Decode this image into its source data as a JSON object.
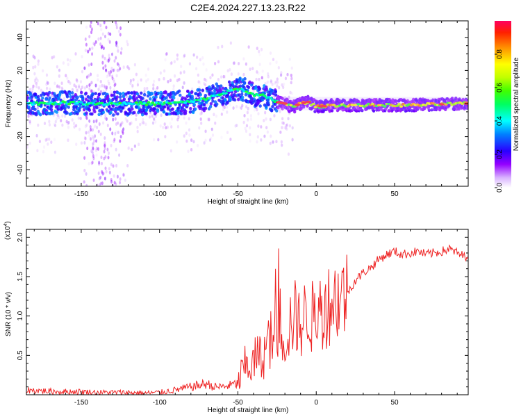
{
  "title": "C2E4.2024.227.13.23.R22",
  "chart_data": [
    {
      "type": "heatmap",
      "title": "C2E4.2024.227.13.23.R22",
      "xlabel": "Height of straight line (km)",
      "ylabel": "Frequency (Hz)",
      "xlim": [
        -185,
        97
      ],
      "ylim": [
        -50,
        50
      ],
      "xticks": [
        -150,
        -100,
        -50,
        0,
        50
      ],
      "xtick_labels": [
        "-150",
        "-100",
        "-50",
        "0",
        "50"
      ],
      "yticks": [
        40,
        20,
        0,
        -20,
        -40
      ],
      "ytick_labels": [
        "40",
        "20",
        "0",
        "-20",
        "-40"
      ],
      "ridge_frequency_hz": {
        "x": [
          -185,
          -160,
          -140,
          -120,
          -100,
          -80,
          -70,
          -60,
          -50,
          -45,
          -40,
          -35,
          -30,
          -25,
          -20,
          -15,
          -10,
          -5,
          0,
          10,
          30,
          60,
          97
        ],
        "y": [
          0,
          0.5,
          0,
          0,
          0,
          1,
          3,
          6,
          9,
          8,
          5,
          5,
          3,
          1,
          0,
          -2,
          0,
          1,
          -2,
          -1,
          -1,
          -1,
          0
        ]
      },
      "colorbar": {
        "label": "Normalized spectral amplitude",
        "range": [
          0,
          1
        ],
        "ticks": [
          0.0,
          0.2,
          0.4,
          0.6,
          0.8
        ],
        "tick_labels": [
          "0.0",
          "0.2",
          "0.4",
          "0.6",
          "0.8"
        ]
      }
    },
    {
      "type": "line",
      "xlabel": "Height of straight line (km)",
      "ylabel": "SNR (10 * v/v)",
      "y_scale_label": "(x10",
      "y_scale_exp": "4",
      "y_scale_suffix": ")",
      "xlim": [
        -185,
        97
      ],
      "ylim": [
        0,
        2.1
      ],
      "xticks": [
        -150,
        -100,
        -50,
        0,
        50
      ],
      "xtick_labels": [
        "-150",
        "-100",
        "-50",
        "0",
        "50"
      ],
      "yticks": [
        2.0,
        1.5,
        1.0,
        0.5
      ],
      "ytick_labels": [
        "2.0",
        "1.5",
        "1.0",
        "0.5"
      ],
      "series": [
        {
          "name": "SNR",
          "color": "#ee2222",
          "x": [
            -185,
            -175,
            -165,
            -150,
            -140,
            -130,
            -120,
            -110,
            -100,
            -90,
            -80,
            -75,
            -70,
            -65,
            -60,
            -55,
            -50,
            -47,
            -44,
            -41,
            -38,
            -35,
            -32,
            -29,
            -26,
            -23,
            -20,
            -17,
            -14,
            -11,
            -8,
            -5,
            -2,
            0,
            5,
            10,
            15,
            20,
            25,
            30,
            35,
            40,
            45,
            50,
            55,
            60,
            65,
            70,
            75,
            80,
            85,
            90,
            95,
            97
          ],
          "values": [
            0.06,
            0.05,
            0.04,
            0.04,
            0.03,
            0.03,
            0.03,
            0.02,
            0.03,
            0.06,
            0.1,
            0.12,
            0.14,
            0.1,
            0.1,
            0.12,
            0.14,
            0.3,
            0.4,
            0.35,
            0.5,
            0.45,
            0.6,
            0.7,
            0.75,
            0.95,
            0.7,
            0.9,
            1.0,
            0.9,
            0.95,
            1.1,
            0.95,
            1.0,
            1.1,
            1.2,
            1.25,
            1.3,
            1.45,
            1.55,
            1.62,
            1.72,
            1.78,
            1.82,
            1.78,
            1.8,
            1.82,
            1.78,
            1.8,
            1.82,
            1.85,
            1.8,
            1.75,
            1.8
          ]
        }
      ]
    }
  ]
}
